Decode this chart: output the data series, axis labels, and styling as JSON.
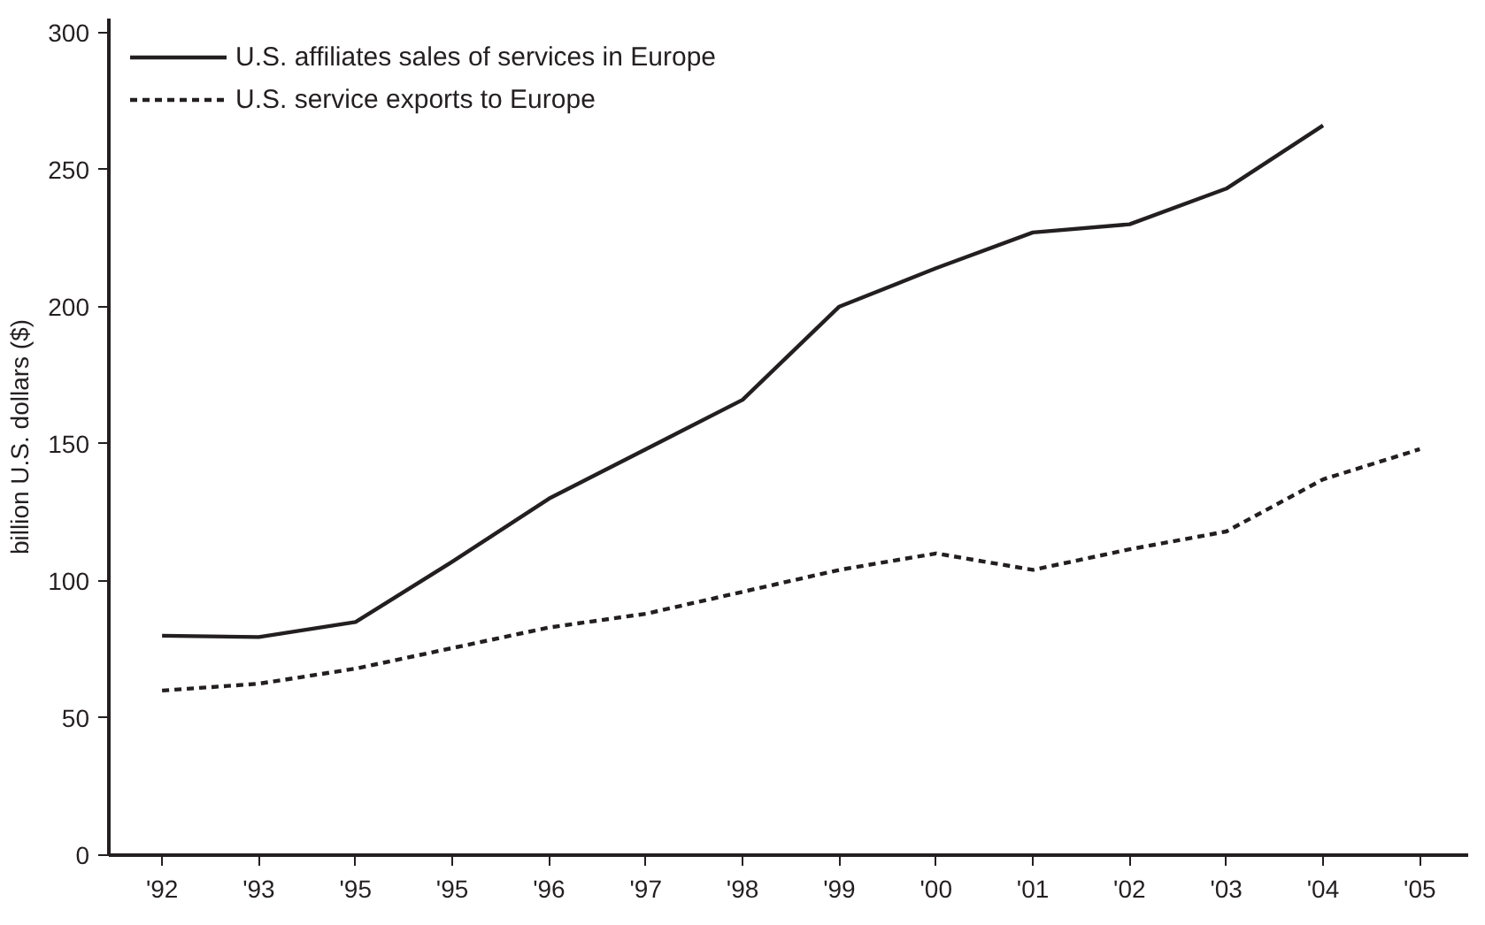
{
  "chart_data": {
    "type": "line",
    "ylabel": "billion U.S. dollars ($)",
    "categories": [
      "'92",
      "'93",
      "'95",
      "'95",
      "'96",
      "'97",
      "'98",
      "'99",
      "'00",
      "'01",
      "'02",
      "'03",
      "'04",
      "'05"
    ],
    "series": [
      {
        "name": "U.S. affiliates sales of services in Europe",
        "color": "#231f20",
        "line_style": "solid",
        "values": [
          80,
          79.5,
          85,
          107,
          130,
          148,
          166,
          200,
          214,
          227,
          230,
          243,
          266,
          null
        ]
      },
      {
        "name": "U.S. service exports to Europe",
        "color": "#231f20",
        "line_style": "dashed",
        "values": [
          60,
          62.5,
          68,
          75.5,
          83,
          88,
          96,
          104,
          110,
          104,
          111.5,
          118,
          137,
          148
        ]
      }
    ],
    "ylim": [
      0,
      305
    ],
    "yticks": [
      0,
      50,
      100,
      150,
      200,
      250,
      300
    ],
    "grid": false,
    "legend": "top left",
    "marker": "none"
  }
}
